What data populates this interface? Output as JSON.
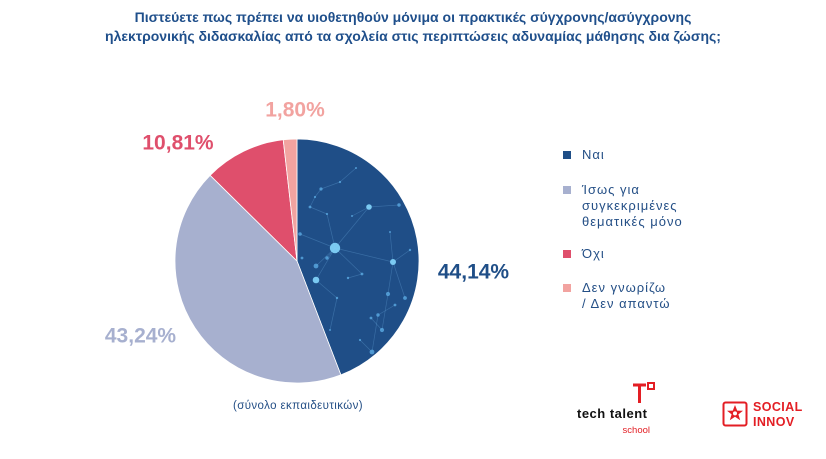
{
  "chart_data": {
    "type": "pie",
    "title": "Πιστεύετε πως πρέπει να υιοθετηθούν μόνιμα οι πρακτικές σύγχρονης/ασύγχρονης\nηλεκτρονικής διδασκαλίας από τα σχολεία στις περιπτώσεις αδυναμίας μάθησης δια ζώσης;",
    "caption": "(σύνολο εκπαιδευτικών)",
    "legend_placement": "right",
    "slices": [
      {
        "label": "Ναι",
        "value": 44.14,
        "value_label": "44,14%",
        "color": "#1f4e87"
      },
      {
        "label": "Ίσως για\nσυγκεκριμένες\nθεματικές μόνο",
        "value": 43.24,
        "value_label": "43,24%",
        "color": "#a7b0cf"
      },
      {
        "label": "Όχι",
        "value": 10.81,
        "value_label": "10,81%",
        "color": "#df4f6c"
      },
      {
        "label": "Δεν γνωρίζω\n/ Δεν απαντώ",
        "value": 1.8,
        "value_label": "1,80%",
        "color": "#f2a3a0"
      }
    ]
  },
  "logos": {
    "tech_talent": {
      "name": "tech talent",
      "sub": "school",
      "color": "#e31e24",
      "icon": "tech-talent-logo-icon"
    },
    "social_innov": {
      "line1": "SOCIAL",
      "line2": "INNOV",
      "color": "#e31e24",
      "icon": "social-innov-logo-icon"
    }
  }
}
